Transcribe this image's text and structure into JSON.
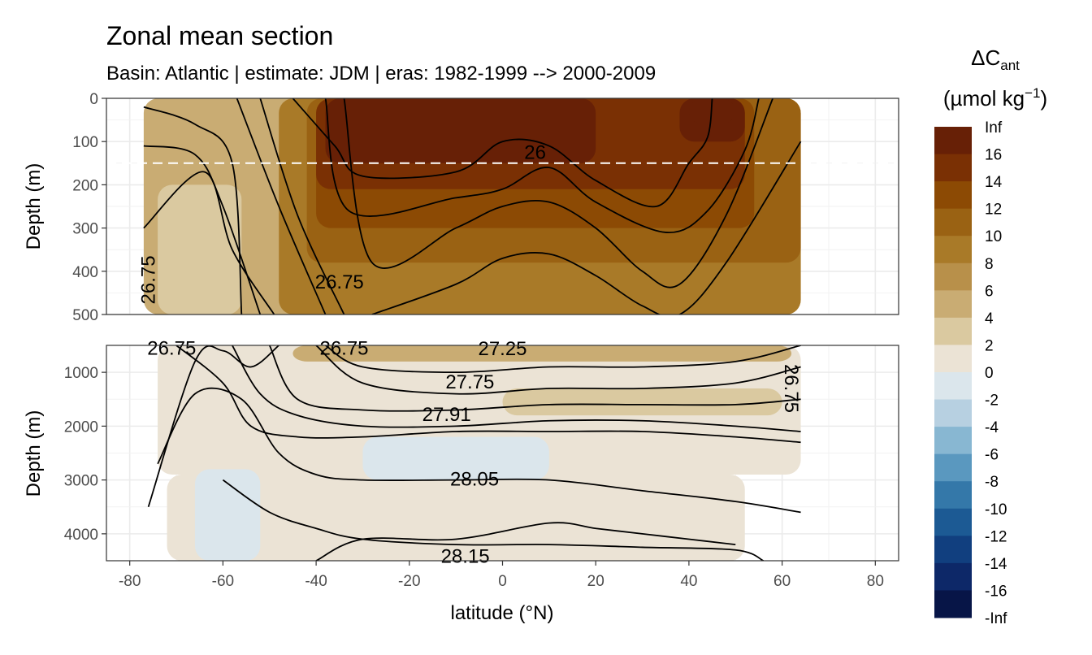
{
  "header": {
    "title": "Zonal mean section",
    "subtitle": "Basin: Atlantic | estimate: JDM  | eras: 1982-1999 --> 2000-2009"
  },
  "chart_data": {
    "type": "heatmap",
    "title": "Zonal mean section",
    "subtitle": "Basin: Atlantic | estimate: JDM  | eras: 1982-1999 --> 2000-2009",
    "xlabel": "latitude (°N)",
    "ylabel": "Depth (m)",
    "xlim": [
      -85,
      85
    ],
    "x_ticks": [
      -80,
      -60,
      -40,
      -20,
      0,
      20,
      40,
      60,
      80
    ],
    "x_tick_labels": [
      "-80",
      "-60",
      "-40",
      "-20",
      "0",
      "20",
      "40",
      "60",
      "80"
    ],
    "reference_line_depth": 150,
    "panels": [
      {
        "name": "upper",
        "ylim": [
          0,
          500
        ],
        "y_ticks": [
          0,
          100,
          200,
          300,
          400,
          500
        ],
        "y_tick_labels": [
          "0",
          "100",
          "200",
          "300",
          "400",
          "500"
        ],
        "contour_labels": [
          "26",
          "26.75",
          "26.75"
        ],
        "fill_bands": [
          {
            "lat": [
              -77,
              64
            ],
            "top": 0,
            "bottom": 500,
            "level": 2
          },
          {
            "lat": [
              -74,
              -56
            ],
            "top": 200,
            "bottom": 500,
            "level": 1
          },
          {
            "lat": [
              -48,
              64
            ],
            "top": 0,
            "bottom": 500,
            "level": 4
          },
          {
            "lat": [
              -42,
              64
            ],
            "top": 0,
            "bottom": 380,
            "level": 5
          },
          {
            "lat": [
              -40,
              54
            ],
            "top": 0,
            "bottom": 300,
            "level": 6
          },
          {
            "lat": [
              -40,
              52
            ],
            "top": 0,
            "bottom": 210,
            "level": 7
          },
          {
            "lat": [
              -38,
              20
            ],
            "top": 0,
            "bottom": 150,
            "level": 8
          },
          {
            "lat": [
              38,
              52
            ],
            "top": 0,
            "bottom": 100,
            "level": 8
          },
          {
            "lat": [
              40,
              50
            ],
            "top": 0,
            "bottom": 60,
            "level": 9
          }
        ],
        "contours": [
          {
            "lat": [
              -77,
              -66,
              -58,
              -56
            ],
            "depth": [
              20,
              60,
              150,
              500
            ]
          },
          {
            "lat": [
              -77,
              -66,
              -60,
              -52
            ],
            "depth": [
              110,
              130,
              250,
              500
            ]
          },
          {
            "lat": [
              -77,
              -64,
              -58,
              -49
            ],
            "depth": [
              300,
              170,
              350,
              500
            ]
          },
          {
            "lat": [
              -57,
              -48,
              -38
            ],
            "depth": [
              0,
              250,
              500
            ]
          },
          {
            "lat": [
              -52,
              -44,
              -34
            ],
            "depth": [
              0,
              270,
              500
            ]
          },
          {
            "lat": [
              -45,
              -36,
              -30,
              -10,
              0,
              10,
              20,
              33,
              40,
              44,
              45
            ],
            "depth": [
              0,
              110,
              180,
              170,
              100,
              110,
              190,
              250,
              150,
              90,
              0
            ]
          },
          {
            "lat": [
              -38,
              -33,
              -10,
              0,
              10,
              20,
              35,
              44,
              52,
              55
            ],
            "depth": [
              0,
              260,
              230,
              210,
              160,
              240,
              310,
              260,
              120,
              0
            ]
          },
          {
            "lat": [
              -34,
              -28,
              -10,
              0,
              10,
              20,
              30,
              38,
              48,
              58
            ],
            "depth": [
              0,
              380,
              300,
              250,
              240,
              300,
              400,
              430,
              270,
              0
            ]
          },
          {
            "lat": [
              -28,
              -10,
              0,
              10,
              20,
              30,
              38,
              48,
              64
            ],
            "depth": [
              500,
              430,
              370,
              360,
              410,
              480,
              500,
              380,
              100
            ]
          }
        ]
      },
      {
        "name": "lower",
        "ylim": [
          500,
          4500
        ],
        "y_ticks": [
          1000,
          2000,
          3000,
          4000
        ],
        "y_tick_labels": [
          "1000",
          "2000",
          "3000",
          "4000"
        ],
        "contour_labels": [
          "26.75",
          "27.25",
          "27.75",
          "27.91",
          "28.05",
          "28.15",
          "26.75",
          "26.75"
        ],
        "fill_bands": [
          {
            "lat": [
              -74,
              64
            ],
            "top": 500,
            "bottom": 2900,
            "level": 0
          },
          {
            "lat": [
              -72,
              52
            ],
            "top": 2900,
            "bottom": 4500,
            "level": 0
          },
          {
            "lat": [
              -66,
              -52
            ],
            "top": 2800,
            "bottom": 4500,
            "level": -1
          },
          {
            "lat": [
              -30,
              10
            ],
            "top": 2200,
            "bottom": 3000,
            "level": -1
          },
          {
            "lat": [
              -45,
              62
            ],
            "top": 500,
            "bottom": 800,
            "level": 2
          },
          {
            "lat": [
              0,
              60
            ],
            "top": 1300,
            "bottom": 1800,
            "level": 1
          }
        ],
        "contours": [
          {
            "lat": [
              -76,
              -66,
              -60,
              -54,
              -48
            ],
            "depth": [
              3500,
              800,
              600,
              900,
              500
            ]
          },
          {
            "lat": [
              -74,
              -66,
              -56,
              -48,
              -40,
              -30,
              -10,
              10,
              30,
              50,
              64
            ],
            "depth": [
              2700,
              1400,
              1500,
              2500,
              2900,
              3000,
              3000,
              3000,
              3200,
              3400,
              3600
            ]
          },
          {
            "lat": [
              -70,
              -60,
              -54,
              -44,
              -30,
              -10,
              10,
              30,
              50,
              64
            ],
            "depth": [
              500,
              1200,
              2000,
              2200,
              2200,
              2100,
              2100,
              2100,
              2200,
              2300
            ]
          },
          {
            "lat": [
              -58,
              -52,
              -44,
              -30,
              -10,
              10,
              30,
              50,
              64
            ],
            "depth": [
              500,
              1400,
              1800,
              2000,
              2000,
              1900,
              1900,
              2000,
              2100
            ]
          },
          {
            "lat": [
              -50,
              -44,
              -30,
              -10,
              10,
              30,
              50,
              64
            ],
            "depth": [
              500,
              1500,
              1700,
              1700,
              1600,
              1600,
              1600,
              1500
            ]
          },
          {
            "lat": [
              -40,
              -30,
              -10,
              10,
              30,
              50,
              64
            ],
            "depth": [
              500,
              1200,
              1400,
              1300,
              1300,
              1200,
              900
            ]
          },
          {
            "lat": [
              -38,
              -30,
              -10,
              10,
              30,
              50,
              64
            ],
            "depth": [
              500,
              900,
              1000,
              900,
              900,
              800,
              500
            ]
          },
          {
            "lat": [
              -60,
              -50,
              -40,
              -30,
              -10,
              10,
              30,
              50,
              56
            ],
            "depth": [
              3000,
              3600,
              3900,
              4100,
              4200,
              4200,
              4250,
              4300,
              4500
            ]
          },
          {
            "lat": [
              -40,
              -30,
              -10,
              10,
              20,
              30,
              40,
              50
            ],
            "depth": [
              4500,
              4100,
              4100,
              3800,
              3900,
              4000,
              4100,
              4200
            ]
          }
        ]
      }
    ],
    "colorbar": {
      "title": "ΔC",
      "title_subscript": "ant",
      "units": "(µmol kg",
      "units_superscript": "−1",
      "units_close": ")",
      "labels": [
        "Inf",
        "16",
        "14",
        "12",
        "10",
        "8",
        "6",
        "4",
        "2",
        "0",
        "-2",
        "-4",
        "-6",
        "-8",
        "-10",
        "-12",
        "-14",
        "-16",
        "-Inf"
      ],
      "colors": [
        "#672006",
        "#7a3004",
        "#8c4a04",
        "#9a6213",
        "#a97a28",
        "#b8904a",
        "#c9ac73",
        "#dac9a0",
        "#ebe3d5",
        "#dbe6ec",
        "#b7d0e1",
        "#88b7d2",
        "#5a98bf",
        "#3478a9",
        "#1c5a94",
        "#113f7f",
        "#0d2868",
        "#071547"
      ]
    },
    "contour_label_texts": {
      "upper": [
        {
          "text": "26",
          "lat": 7,
          "depth": 125,
          "angle": 0
        },
        {
          "text": "26.75",
          "lat": -35,
          "depth": 425,
          "angle": 0
        },
        {
          "text": "26.75",
          "lat": -76,
          "depth": 420,
          "angle": -90
        }
      ],
      "lower": [
        {
          "text": "26.75",
          "lat": -71,
          "depth": 550,
          "angle": 0
        },
        {
          "text": "26.75",
          "lat": -34,
          "depth": 550,
          "angle": 0
        },
        {
          "text": "27.25",
          "lat": 0,
          "depth": 560,
          "angle": 0
        },
        {
          "text": "27.75",
          "lat": -7,
          "depth": 1180,
          "angle": 0
        },
        {
          "text": "27.91",
          "lat": -12,
          "depth": 1780,
          "angle": 0
        },
        {
          "text": "28.05",
          "lat": -6,
          "depth": 2980,
          "angle": 0
        },
        {
          "text": "28.15",
          "lat": -8,
          "depth": 4420,
          "angle": 0
        },
        {
          "text": "26.75",
          "lat": 62,
          "depth": 1300,
          "angle": 90
        }
      ]
    },
    "grid": true,
    "legend_position": "right"
  }
}
